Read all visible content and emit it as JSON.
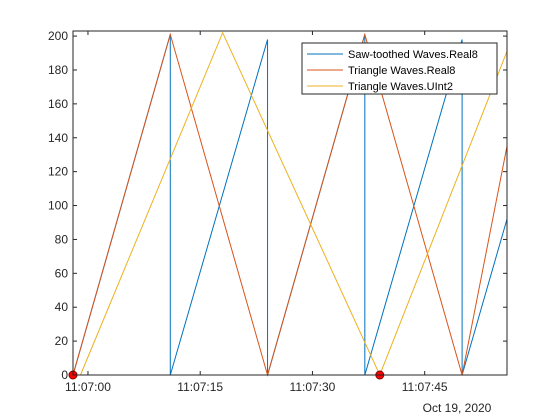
{
  "chart_data": {
    "type": "line",
    "x_unit": "time (HH:MM:SS, Oct 19, 2020)",
    "x_range": [
      "11:06:58",
      "11:07:56"
    ],
    "ylim": [
      0,
      203
    ],
    "grid": false,
    "legend_position": "top-right",
    "x_ticks": [
      "11:07:00",
      "11:07:15",
      "11:07:30",
      "11:07:45"
    ],
    "x_secondary_label": "Oct 19, 2020",
    "y_ticks": [
      0,
      20,
      40,
      60,
      80,
      100,
      120,
      140,
      160,
      180,
      200
    ],
    "colors": {
      "axis": "#262626",
      "marker_fill": "#ff0000",
      "marker_edge": "#800000"
    },
    "series": [
      {
        "name": "Saw-toothed Waves.Real8",
        "color": "#0072BD",
        "x": [
          "11:06:58",
          "11:07:11",
          "11:07:11",
          "11:07:24",
          "11:07:24",
          "11:07:37",
          "11:07:37",
          "11:07:50",
          "11:07:50",
          "11:07:56"
        ],
        "y": [
          0,
          201,
          0,
          198,
          0,
          201,
          0,
          198,
          0,
          92
        ]
      },
      {
        "name": "Triangle Waves.Real8",
        "color": "#D95319",
        "x": [
          "11:06:58",
          "11:07:11",
          "11:07:24",
          "11:07:37",
          "11:07:50",
          "11:07:56"
        ],
        "y": [
          0,
          201,
          0,
          201,
          0,
          135
        ]
      },
      {
        "name": "Triangle Waves.UInt2",
        "color": "#EDB120",
        "x": [
          "11:06:59",
          "11:07:18",
          "11:07:39",
          "11:07:56"
        ],
        "y": [
          0,
          202,
          0,
          191
        ]
      }
    ],
    "markers": [
      {
        "x": "11:06:58",
        "y": 0
      },
      {
        "x": "11:07:39",
        "y": 0
      }
    ]
  }
}
